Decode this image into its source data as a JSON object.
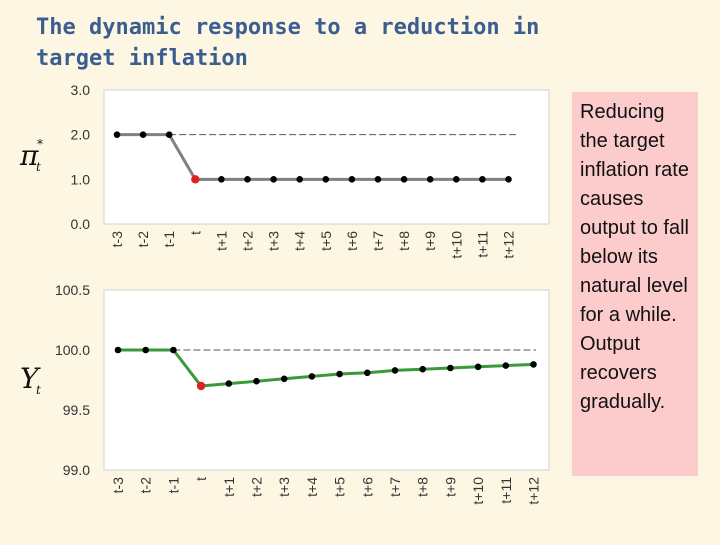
{
  "title": "The dynamic response to a reduction in target inflation",
  "note": "Reducing the target inflation rate causes output to fall below its natural level for a while. Output recovers gradually.",
  "colors": {
    "background": "#fdf6e3",
    "title": "#3b5e91",
    "note_box": "#fccccc",
    "inflation_line": "#808080",
    "output_line": "#3a9a3a",
    "highlight_point": "#e02020",
    "point": "#000000"
  },
  "chart_data": [
    {
      "type": "line",
      "categories": [
        "t-3",
        "t-2",
        "t-1",
        "t",
        "t+1",
        "t+2",
        "t+3",
        "t+4",
        "t+5",
        "t+6",
        "t+7",
        "t+8",
        "t+9",
        "t+10",
        "t+11",
        "t+12"
      ],
      "values": [
        2.0,
        2.0,
        2.0,
        1.0,
        1.0,
        1.0,
        1.0,
        1.0,
        1.0,
        1.0,
        1.0,
        1.0,
        1.0,
        1.0,
        1.0,
        1.0
      ],
      "reference_line": 2.0,
      "highlight_index": 3,
      "ylim": [
        0.0,
        3.0
      ],
      "yticks": [
        "0.0",
        "1.0",
        "2.0",
        "3.0"
      ],
      "ylabel": {
        "symbol": "π",
        "superscript": "*",
        "subscript": "t"
      },
      "grid": false
    },
    {
      "type": "line",
      "categories": [
        "t-3",
        "t-2",
        "t-1",
        "t",
        "t+1",
        "t+2",
        "t+3",
        "t+4",
        "t+5",
        "t+6",
        "t+7",
        "t+8",
        "t+9",
        "t+10",
        "t+11",
        "t+12"
      ],
      "values": [
        100.0,
        100.0,
        100.0,
        99.7,
        99.72,
        99.74,
        99.76,
        99.78,
        99.8,
        99.81,
        99.83,
        99.84,
        99.85,
        99.86,
        99.87,
        99.88
      ],
      "reference_line": 100.0,
      "highlight_index": 3,
      "ylim": [
        99.0,
        100.5
      ],
      "yticks": [
        "99.0",
        "99.5",
        "100.0",
        "100.5"
      ],
      "ylabel": {
        "symbol": "Y",
        "subscript": "t"
      },
      "grid": false
    }
  ]
}
